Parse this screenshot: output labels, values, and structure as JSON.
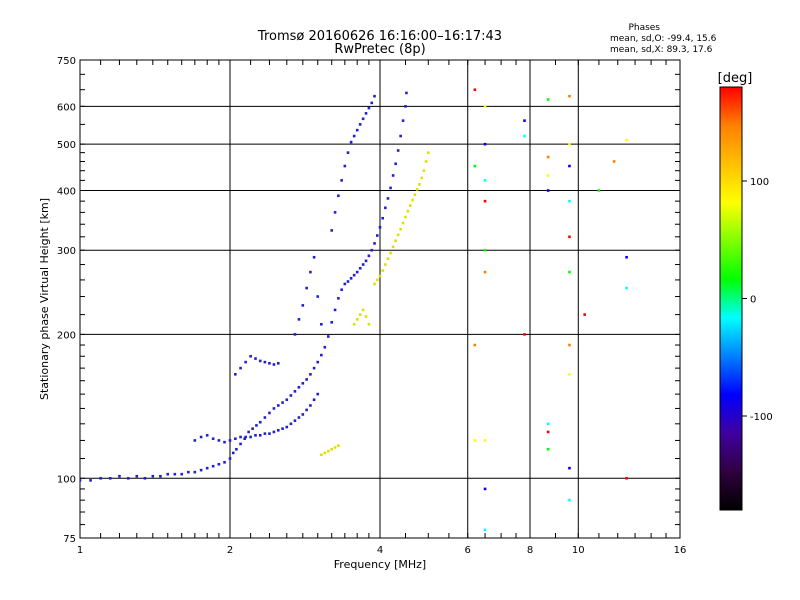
{
  "chart_data": {
    "type": "scatter",
    "title": "Tromsø 20160626 16:16:00–16:17:43",
    "subtitle": "RwPretec (8p)",
    "xlabel": "Frequency [MHz]",
    "ylabel": "Stationary phase Virtual Height [km]",
    "x_scale": "log2",
    "y_scale": "log",
    "xlim": [
      1,
      16
    ],
    "ylim": [
      75,
      750
    ],
    "x_ticks": [
      "1",
      "2",
      "4",
      "6",
      "8",
      "10",
      "16"
    ],
    "y_ticks": [
      "750",
      "600",
      "500",
      "400",
      "300",
      "200",
      "100",
      "75"
    ],
    "grid": true,
    "phase_box": {
      "title": "Phases",
      "line1": "mean, sd,O: -99.4, 15.6",
      "line2": "mean, sd,X:  89.3, 17.6"
    },
    "colorbar": {
      "label": "[deg]",
      "range": [
        -180,
        180
      ],
      "ticks": [
        "100",
        "0",
        "-100"
      ],
      "colors": [
        "#000000",
        "#300040",
        "#4000a0",
        "#0000ff",
        "#0080ff",
        "#00ffff",
        "#00ff00",
        "#80ff00",
        "#ffff00",
        "#ffc000",
        "#ff8000",
        "#ff0000"
      ]
    },
    "series": [
      {
        "mode": "O",
        "phase": -100,
        "color": "#2020d0",
        "points": [
          [
            1.0,
            99
          ],
          [
            1.05,
            99
          ],
          [
            1.1,
            100
          ],
          [
            1.15,
            100
          ],
          [
            1.2,
            101
          ],
          [
            1.25,
            100
          ],
          [
            1.3,
            101
          ],
          [
            1.35,
            100
          ],
          [
            1.4,
            101
          ],
          [
            1.45,
            101
          ],
          [
            1.5,
            102
          ],
          [
            1.55,
            102
          ],
          [
            1.6,
            102
          ],
          [
            1.65,
            103
          ],
          [
            1.7,
            103
          ],
          [
            1.75,
            104
          ],
          [
            1.8,
            105
          ],
          [
            1.85,
            106
          ],
          [
            1.9,
            107
          ],
          [
            1.95,
            108
          ],
          [
            2.0,
            110
          ],
          [
            2.03,
            113
          ],
          [
            2.06,
            115
          ],
          [
            2.1,
            118
          ],
          [
            2.14,
            121
          ],
          [
            2.18,
            125
          ],
          [
            2.22,
            127
          ],
          [
            2.26,
            129
          ],
          [
            2.3,
            131
          ],
          [
            2.35,
            134
          ],
          [
            2.4,
            137
          ],
          [
            2.45,
            140
          ],
          [
            2.5,
            142
          ],
          [
            2.55,
            144
          ],
          [
            2.6,
            146
          ],
          [
            2.65,
            149
          ],
          [
            2.7,
            152
          ],
          [
            2.75,
            155
          ],
          [
            2.8,
            158
          ],
          [
            2.85,
            161
          ],
          [
            2.9,
            165
          ],
          [
            2.95,
            170
          ],
          [
            3.0,
            175
          ],
          [
            3.05,
            181
          ],
          [
            3.1,
            188
          ],
          [
            3.15,
            198
          ],
          [
            3.2,
            212
          ],
          [
            3.25,
            225
          ],
          [
            3.3,
            238
          ],
          [
            3.35,
            248
          ],
          [
            3.4,
            255
          ],
          [
            3.45,
            258
          ],
          [
            3.5,
            262
          ],
          [
            3.55,
            266
          ],
          [
            3.6,
            270
          ],
          [
            3.65,
            275
          ],
          [
            3.7,
            280
          ],
          [
            3.75,
            285
          ],
          [
            3.8,
            292
          ],
          [
            3.85,
            300
          ],
          [
            3.9,
            310
          ],
          [
            3.95,
            322
          ],
          [
            4.0,
            335
          ],
          [
            4.05,
            350
          ],
          [
            4.1,
            368
          ],
          [
            4.15,
            385
          ],
          [
            4.2,
            405
          ],
          [
            4.25,
            430
          ],
          [
            4.3,
            455
          ],
          [
            4.35,
            485
          ],
          [
            4.4,
            520
          ],
          [
            4.45,
            560
          ],
          [
            4.5,
            600
          ],
          [
            4.52,
            640
          ],
          [
            1.7,
            120
          ],
          [
            1.75,
            122
          ],
          [
            1.8,
            123
          ],
          [
            1.85,
            121
          ],
          [
            1.9,
            120
          ],
          [
            1.95,
            119
          ],
          [
            2.0,
            120
          ],
          [
            2.05,
            121
          ],
          [
            2.1,
            122
          ],
          [
            2.15,
            122
          ],
          [
            2.2,
            122
          ],
          [
            2.25,
            123
          ],
          [
            2.3,
            123
          ],
          [
            2.35,
            124
          ],
          [
            2.4,
            124
          ],
          [
            2.45,
            125
          ],
          [
            2.5,
            126
          ],
          [
            2.55,
            127
          ],
          [
            2.6,
            128
          ],
          [
            2.65,
            130
          ],
          [
            2.7,
            132
          ],
          [
            2.75,
            134
          ],
          [
            2.8,
            136
          ],
          [
            2.85,
            139
          ],
          [
            2.9,
            142
          ],
          [
            2.95,
            146
          ],
          [
            3.0,
            150
          ],
          [
            2.05,
            165
          ],
          [
            2.1,
            170
          ],
          [
            2.15,
            175
          ],
          [
            2.2,
            180
          ],
          [
            2.25,
            178
          ],
          [
            2.3,
            176
          ],
          [
            2.35,
            175
          ],
          [
            2.4,
            174
          ],
          [
            2.45,
            173
          ],
          [
            2.5,
            174
          ],
          [
            2.7,
            200
          ],
          [
            2.75,
            215
          ],
          [
            2.8,
            230
          ],
          [
            2.85,
            250
          ],
          [
            2.9,
            270
          ],
          [
            2.95,
            290
          ],
          [
            3.0,
            240
          ],
          [
            3.05,
            210
          ],
          [
            3.2,
            330
          ],
          [
            3.25,
            360
          ],
          [
            3.3,
            390
          ],
          [
            3.35,
            420
          ],
          [
            3.4,
            450
          ],
          [
            3.45,
            480
          ],
          [
            3.5,
            505
          ],
          [
            3.55,
            520
          ],
          [
            3.6,
            535
          ],
          [
            3.65,
            550
          ],
          [
            3.7,
            565
          ],
          [
            3.75,
            580
          ],
          [
            3.8,
            595
          ],
          [
            3.85,
            610
          ],
          [
            3.9,
            630
          ]
        ]
      },
      {
        "mode": "X",
        "phase": 90,
        "color": "#e0e000",
        "points": [
          [
            3.05,
            112
          ],
          [
            3.1,
            113
          ],
          [
            3.15,
            114
          ],
          [
            3.2,
            115
          ],
          [
            3.25,
            116
          ],
          [
            3.3,
            117
          ],
          [
            3.55,
            210
          ],
          [
            3.6,
            215
          ],
          [
            3.65,
            220
          ],
          [
            3.7,
            225
          ],
          [
            3.75,
            218
          ],
          [
            3.8,
            210
          ],
          [
            3.9,
            255
          ],
          [
            3.95,
            260
          ],
          [
            4.0,
            265
          ],
          [
            4.05,
            272
          ],
          [
            4.1,
            280
          ],
          [
            4.15,
            288
          ],
          [
            4.2,
            296
          ],
          [
            4.25,
            305
          ],
          [
            4.3,
            314
          ],
          [
            4.35,
            323
          ],
          [
            4.4,
            332
          ],
          [
            4.45,
            342
          ],
          [
            4.5,
            352
          ],
          [
            4.55,
            362
          ],
          [
            4.6,
            372
          ],
          [
            4.65,
            382
          ],
          [
            4.7,
            392
          ],
          [
            4.75,
            402
          ],
          [
            4.8,
            412
          ],
          [
            4.85,
            425
          ],
          [
            4.9,
            440
          ],
          [
            4.95,
            460
          ],
          [
            5.0,
            480
          ]
        ]
      },
      {
        "mode": "noise",
        "color": "#808080",
        "points": [
          [
            6.5,
            600
          ],
          [
            6.5,
            500
          ],
          [
            6.5,
            420
          ],
          [
            6.5,
            380
          ],
          [
            6.5,
            300
          ],
          [
            6.5,
            270
          ],
          [
            6.5,
            120
          ],
          [
            6.5,
            95
          ],
          [
            6.5,
            78
          ],
          [
            6.2,
            650
          ],
          [
            6.2,
            450
          ],
          [
            6.2,
            190
          ],
          [
            6.2,
            120
          ],
          [
            7.8,
            560
          ],
          [
            7.8,
            520
          ],
          [
            7.8,
            200
          ],
          [
            8.7,
            620
          ],
          [
            8.7,
            470
          ],
          [
            8.7,
            430
          ],
          [
            8.7,
            400
          ],
          [
            8.7,
            130
          ],
          [
            8.7,
            125
          ],
          [
            8.7,
            115
          ],
          [
            9.6,
            630
          ],
          [
            9.6,
            500
          ],
          [
            9.6,
            450
          ],
          [
            9.6,
            380
          ],
          [
            9.6,
            320
          ],
          [
            9.6,
            270
          ],
          [
            9.6,
            190
          ],
          [
            9.6,
            165
          ],
          [
            9.6,
            105
          ],
          [
            9.6,
            90
          ],
          [
            10.3,
            220
          ],
          [
            11.0,
            400
          ],
          [
            11.8,
            460
          ],
          [
            12.5,
            510
          ],
          [
            12.5,
            290
          ],
          [
            12.5,
            250
          ],
          [
            12.5,
            100
          ]
        ]
      }
    ]
  }
}
